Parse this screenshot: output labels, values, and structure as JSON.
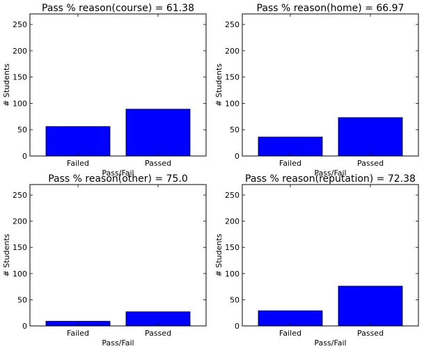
{
  "chart_data": [
    {
      "type": "bar",
      "title": "Pass % reason(course) = 61.38",
      "xlabel": "Pass/Fail",
      "ylabel": "# Students",
      "categories": [
        "Failed",
        "Passed"
      ],
      "values": [
        56,
        89
      ],
      "ylim": [
        0,
        270
      ],
      "yticks": [
        0,
        50,
        100,
        150,
        200,
        250
      ],
      "bar_color": "#0000ff",
      "grid": false
    },
    {
      "type": "bar",
      "title": "Pass % reason(home) = 66.97",
      "xlabel": "Pass/Fail",
      "ylabel": "# Students",
      "categories": [
        "Failed",
        "Passed"
      ],
      "values": [
        36,
        73
      ],
      "ylim": [
        0,
        270
      ],
      "yticks": [
        0,
        50,
        100,
        150,
        200,
        250
      ],
      "bar_color": "#0000ff",
      "grid": false
    },
    {
      "type": "bar",
      "title": "Pass % reason(other) = 75.0",
      "xlabel": "Pass/Fail",
      "ylabel": "# Students",
      "categories": [
        "Failed",
        "Passed"
      ],
      "values": [
        9,
        27
      ],
      "ylim": [
        0,
        270
      ],
      "yticks": [
        0,
        50,
        100,
        150,
        200,
        250
      ],
      "bar_color": "#0000ff",
      "grid": false
    },
    {
      "type": "bar",
      "title": "Pass % reason(reputation) = 72.38",
      "xlabel": "Pass/Fail",
      "ylabel": "# Students",
      "categories": [
        "Failed",
        "Passed"
      ],
      "values": [
        29,
        76
      ],
      "ylim": [
        0,
        270
      ],
      "yticks": [
        0,
        50,
        100,
        150,
        200,
        250
      ],
      "bar_color": "#0000ff",
      "grid": false
    }
  ]
}
